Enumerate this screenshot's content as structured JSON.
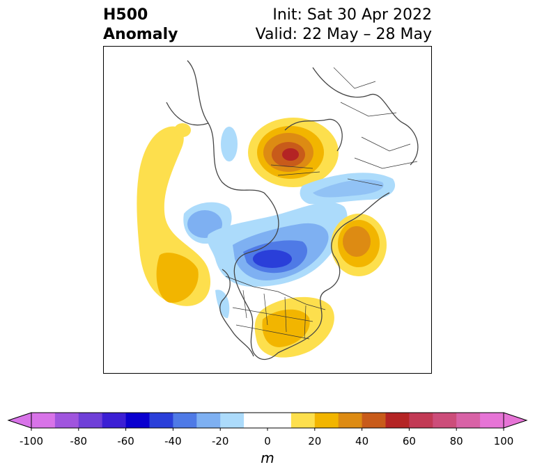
{
  "title": {
    "left_line1": "H500",
    "left_line2": "Anomaly",
    "right_line1": "Init: Sat 30 Apr 2022",
    "right_line2": "Valid: 22 May – 28 May"
  },
  "colorbar": {
    "unit": "m",
    "ticks": [
      "-100",
      "-80",
      "-60",
      "-40",
      "-20",
      "0",
      "20",
      "40",
      "60",
      "80",
      "100"
    ],
    "bins": [
      "#d873e8",
      "#a055de",
      "#6f3fd8",
      "#3c1fd4",
      "#0a00cf",
      "#2a3fd9",
      "#4f7ae6",
      "#7eb0f2",
      "#acdbfb",
      "#ffffff",
      "#ffffff",
      "#fddf4d",
      "#f2b500",
      "#dd8b13",
      "#c85b1a",
      "#b42424",
      "#c23a55",
      "#cc4d7a",
      "#d862a6",
      "#e674d6"
    ]
  },
  "map": {
    "projection": "north-polar-stereographic",
    "region": "North America / Arctic",
    "anomaly_features": [
      {
        "sign": "positive",
        "location": "Eastern Siberia / Arctic coast",
        "max_m": 60
      },
      {
        "sign": "positive",
        "location": "Northeast Pacific / Gulf of Alaska",
        "max_m": 30
      },
      {
        "sign": "positive",
        "location": "Eastern United States",
        "max_m": 30
      },
      {
        "sign": "positive",
        "location": "North Atlantic / Northern Europe",
        "max_m": 40
      },
      {
        "sign": "negative",
        "location": "Hudson Bay / Baffin region",
        "max_m": -50
      },
      {
        "sign": "negative",
        "location": "Beaufort Sea / Western Arctic",
        "max_m": -30
      },
      {
        "sign": "negative",
        "location": "Northern Eurasia",
        "max_m": -20
      }
    ]
  }
}
